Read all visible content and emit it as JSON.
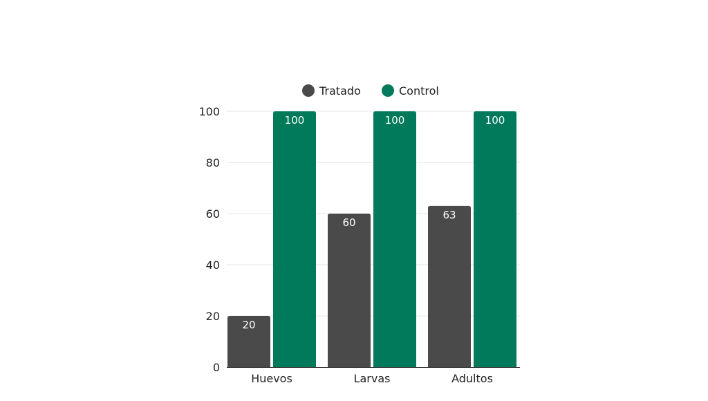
{
  "chart_data": {
    "type": "bar",
    "categories": [
      "Huevos",
      "Larvas",
      "Adultos"
    ],
    "series": [
      {
        "name": "Tratado",
        "values": [
          20,
          60,
          63
        ],
        "color": "#4a4a4a"
      },
      {
        "name": "Control",
        "values": [
          100,
          100,
          100
        ],
        "color": "#007a5a"
      }
    ],
    "ylim": [
      0,
      100
    ],
    "yticks": [
      "0",
      "20",
      "40",
      "60",
      "80",
      "100"
    ],
    "legend": "top-center",
    "grid": true
  }
}
